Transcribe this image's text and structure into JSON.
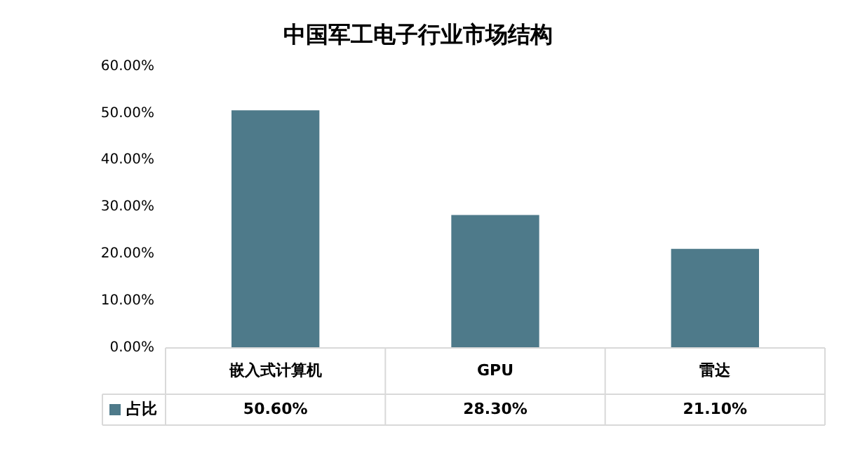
{
  "chart_data": {
    "type": "bar",
    "title": "中国军工电子行业市场结构",
    "categories": [
      "嵌入式计算机",
      "GPU",
      "雷达"
    ],
    "series": [
      {
        "name": "占比",
        "color": "#4e7a8a",
        "values": [
          50.6,
          28.3,
          21.1
        ],
        "value_labels": [
          "50.60%",
          "28.30%",
          "21.10%"
        ]
      }
    ],
    "ylim": [
      0,
      60
    ],
    "yticks": [
      {
        "value": 0,
        "label": "0.00%"
      },
      {
        "value": 10,
        "label": "10.00%"
      },
      {
        "value": 20,
        "label": "20.00%"
      },
      {
        "value": 30,
        "label": "30.00%"
      },
      {
        "value": 40,
        "label": "40.00%"
      },
      {
        "value": 50,
        "label": "50.00%"
      },
      {
        "value": 60,
        "label": "60.00%"
      }
    ],
    "grid": false
  }
}
